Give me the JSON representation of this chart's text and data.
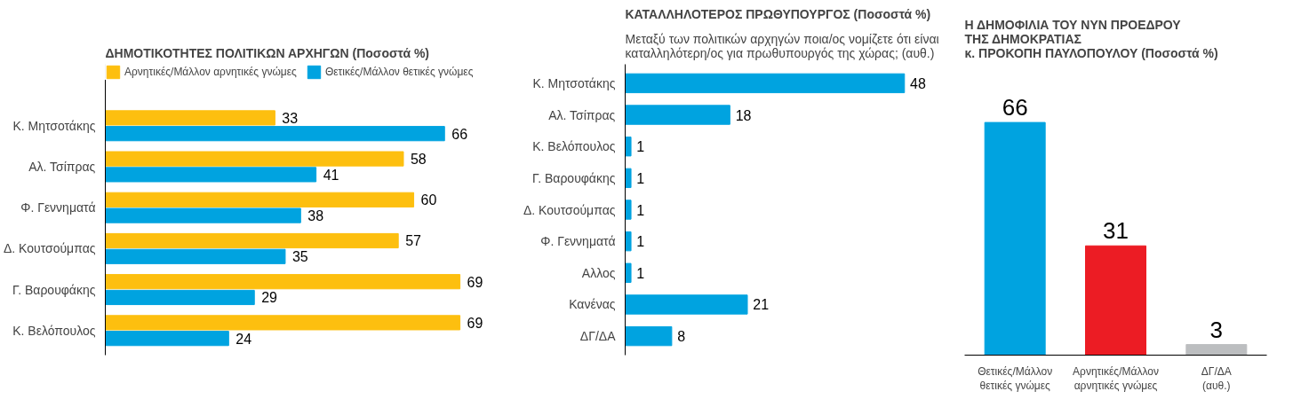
{
  "chart_data": [
    {
      "type": "bar",
      "orientation": "horizontal",
      "title": "ΔΗΜΟΤΙΚΟΤΗΤΕΣ ΠΟΛΙΤΙΚΩΝ ΑΡΧΗΓΩΝ",
      "subtitle": "(Ποσοστά %)",
      "categories": [
        "Κ. Μητσοτάκης",
        "Αλ. Τσίπρας",
        "Φ. Γεννηματά",
        "Δ. Κουτσούμπας",
        "Γ. Βαρουφάκης",
        "Κ. Βελόπουλος"
      ],
      "series": [
        {
          "name": "Αρνητικές/Μάλλον αρνητικές γνώμες",
          "color": "#fdbf0f",
          "values": [
            33,
            58,
            60,
            57,
            69,
            69
          ]
        },
        {
          "name": "Θετικές/Μάλλον θετικές γνώμες",
          "color": "#00a3e0",
          "values": [
            66,
            41,
            38,
            35,
            29,
            24
          ]
        }
      ],
      "data_labels": true,
      "legend": "top"
    },
    {
      "type": "bar",
      "orientation": "horizontal",
      "title": "ΚΑΤΑΛΛΗΛΟΤΕΡΟΣ ΠΡΩΘΥΠΟΥΡΓΟΣ",
      "subtitle": "(Ποσοστά %)",
      "annotations": [
        "Μεταξύ των πολιτικών αρχηγών ποια/ος νομίζετε ότι είναι\nκαταλληλότερη/ος για πρωθυπουργός της χώρας; (αυθ.)"
      ],
      "categories": [
        "Κ. Μητσοτάκης",
        "Αλ. Τσίπρας",
        "Κ. Βελόπουλος",
        "Γ. Βαρουφάκης",
        "Δ. Κουτσούμπας",
        "Φ. Γεννηματά",
        "Αλλος",
        "Κανένας",
        "ΔΓ/ΔΑ"
      ],
      "values": [
        48,
        18,
        1,
        1,
        1,
        1,
        1,
        21,
        8
      ],
      "colors": [
        "#00a3e0",
        "#00a3e0",
        "#00a3e0",
        "#00a3e0",
        "#00a3e0",
        "#00a3e0",
        "#00a3e0",
        "#00a3e0",
        "#00a3e0"
      ],
      "data_labels": true
    },
    {
      "type": "bar",
      "title": "Η ΔΗΜΟΦΙΛΙΑ ΤΟΥ ΝΥΝ ΠΡΟΕΔΡΟΥ\nΤΗΣ ΔΗΜΟΚΡΑΤΙΑΣ\nκ. ΠΡΟΚΟΠΗ ΠΑΥΛΟΠΟΥΛΟΥ",
      "subtitle": "(Ποσοστά %)",
      "categories": [
        "Θετικές/Μάλλον\nθετικές γνώμες",
        "Αρνητικές/Μάλλον\nαρνητικές γνώμες",
        "ΔΓ/ΔΑ\n(αυθ.)"
      ],
      "values": [
        66,
        31,
        3
      ],
      "colors": [
        "#00a3e0",
        "#ec1c24",
        "#bcbec0"
      ],
      "data_labels": true
    }
  ]
}
